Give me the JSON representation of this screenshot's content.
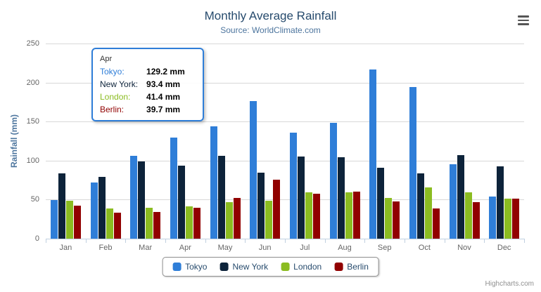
{
  "chart": {
    "title": "Monthly Average Rainfall",
    "subtitle": "Source: WorldClimate.com",
    "y_axis_title": "Rainfall (mm)",
    "credits": "Highcharts.com"
  },
  "colors": {
    "title_text": "#274b6d",
    "subtitle_text": "#4d759e",
    "axis_label": "#666666",
    "gridline": "#d8d8d8",
    "axis_line": "#c0d0e0"
  },
  "chart_data": {
    "type": "bar",
    "title": "Monthly Average Rainfall",
    "subtitle": "Source: WorldClimate.com",
    "xlabel": "",
    "ylabel": "Rainfall (mm)",
    "ylim": [
      0,
      250
    ],
    "yticks": [
      0,
      50,
      100,
      150,
      200,
      250
    ],
    "grid": true,
    "legend_position": "bottom",
    "categories": [
      "Jan",
      "Feb",
      "Mar",
      "Apr",
      "May",
      "Jun",
      "Jul",
      "Aug",
      "Sep",
      "Oct",
      "Nov",
      "Dec"
    ],
    "series": [
      {
        "name": "Tokyo",
        "color": "#2f7ed8",
        "values": [
          49.9,
          71.5,
          106.4,
          129.2,
          144.0,
          176.0,
          135.6,
          148.5,
          216.4,
          194.1,
          95.6,
          54.4
        ]
      },
      {
        "name": "New York",
        "color": "#0d233a",
        "values": [
          83.6,
          78.8,
          98.5,
          93.4,
          106.0,
          84.5,
          105.0,
          104.3,
          91.2,
          83.5,
          106.6,
          92.3
        ]
      },
      {
        "name": "London",
        "color": "#8bbc21",
        "values": [
          48.9,
          38.8,
          39.3,
          41.4,
          47.0,
          48.3,
          59.0,
          59.6,
          52.4,
          65.2,
          59.3,
          51.2
        ]
      },
      {
        "name": "Berlin",
        "color": "#910000",
        "values": [
          42.4,
          33.2,
          34.5,
          39.7,
          52.6,
          75.5,
          57.4,
          60.4,
          47.6,
          39.1,
          46.8,
          51.1
        ]
      }
    ]
  },
  "tooltip": {
    "category": "Apr",
    "border_color": "#2f7ed8",
    "rows": [
      {
        "label": "Tokyo:",
        "value": "129.2 mm",
        "color": "#2f7ed8"
      },
      {
        "label": "New York:",
        "value": "93.4 mm",
        "color": "#0d233a"
      },
      {
        "label": "London:",
        "value": "41.4 mm",
        "color": "#8bbc21"
      },
      {
        "label": "Berlin:",
        "value": "39.7 mm",
        "color": "#910000"
      }
    ]
  },
  "legend": {
    "items": [
      {
        "label": "Tokyo",
        "color": "#2f7ed8"
      },
      {
        "label": "New York",
        "color": "#0d233a"
      },
      {
        "label": "London",
        "color": "#8bbc21"
      },
      {
        "label": "Berlin",
        "color": "#910000"
      }
    ]
  }
}
